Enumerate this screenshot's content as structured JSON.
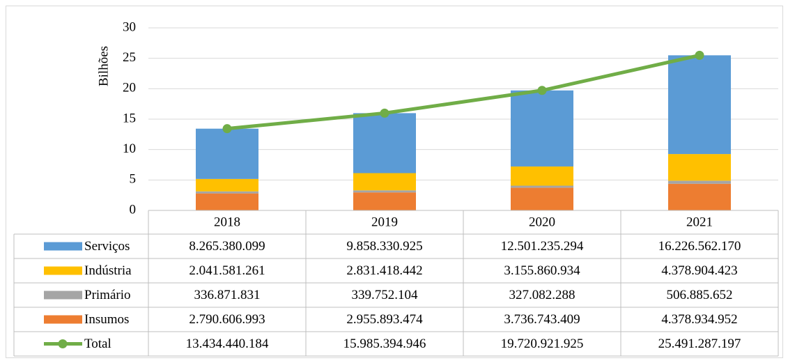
{
  "chart_data": {
    "type": "bar",
    "stacked": true,
    "y_axis_label": "Bilhões",
    "categories": [
      "2018",
      "2019",
      "2020",
      "2021"
    ],
    "ylim": [
      0,
      30
    ],
    "yticks": [
      0,
      5,
      10,
      15,
      20,
      25,
      30
    ],
    "grid": true,
    "series": [
      {
        "name": "Serviços",
        "type": "bar",
        "color": "#5b9bd5",
        "values": [
          8.265380099,
          9.858330925,
          12.501235294,
          16.22656217
        ],
        "value_labels": [
          "8.265.380.099",
          "9.858.330.925",
          "12.501.235.294",
          "16.226.562.170"
        ]
      },
      {
        "name": "Indústria",
        "type": "bar",
        "color": "#ffc000",
        "values": [
          2.041581261,
          2.831418442,
          3.155860934,
          4.378904423
        ],
        "value_labels": [
          "2.041.581.261",
          "2.831.418.442",
          "3.155.860.934",
          "4.378.904.423"
        ]
      },
      {
        "name": "Primário",
        "type": "bar",
        "color": "#a5a5a5",
        "values": [
          0.336871831,
          0.339752104,
          0.327082288,
          0.506885652
        ],
        "value_labels": [
          "336.871.831",
          "339.752.104",
          "327.082.288",
          "506.885.652"
        ]
      },
      {
        "name": "Insumos",
        "type": "bar",
        "color": "#ed7d31",
        "values": [
          2.790606993,
          2.955893474,
          3.736743409,
          4.378934952
        ],
        "value_labels": [
          "2.790.606.993",
          "2.955.893.474",
          "3.736.743.409",
          "4.378.934.952"
        ]
      },
      {
        "name": "Total",
        "type": "line",
        "color": "#70ad47",
        "values": [
          13.434440184,
          15.985394946,
          19.720921925,
          25.491287197
        ],
        "value_labels": [
          "13.434.440.184",
          "15.985.394.946",
          "19.720.921.925",
          "25.491.287.197"
        ]
      }
    ]
  }
}
